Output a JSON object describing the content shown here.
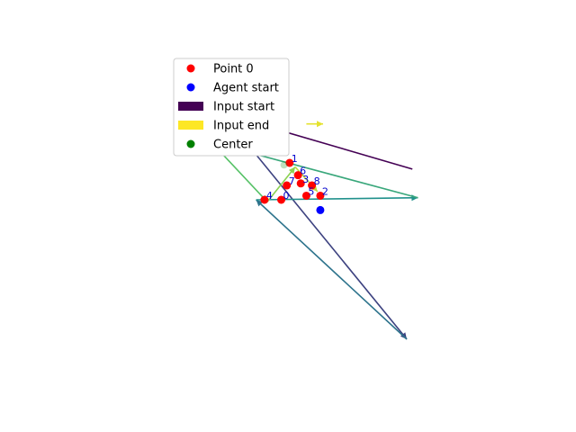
{
  "chart_data": {
    "type": "scatter",
    "title": "",
    "xlabel": "",
    "ylabel": "",
    "axes_visible": false,
    "grid": false,
    "xlim": [
      -4.0,
      4.0
    ],
    "ylim": [
      -4.5,
      3.6
    ],
    "colors": {
      "point": "#ff0000",
      "agent": "#0000ff",
      "center": "#008000",
      "label": "#0000cc",
      "input_start": "#440154",
      "input_end": "#fde725"
    },
    "points": [
      {
        "label": "0",
        "x": -0.25,
        "y": 0.0
      },
      {
        "label": "1",
        "x": -0.1,
        "y": 0.9
      },
      {
        "label": "2",
        "x": 0.45,
        "y": 0.1
      },
      {
        "label": "3",
        "x": 0.1,
        "y": 0.4
      },
      {
        "label": "4",
        "x": -0.55,
        "y": 0.0
      },
      {
        "label": "5",
        "x": 0.2,
        "y": 0.1
      },
      {
        "label": "6",
        "x": 0.05,
        "y": 0.6
      },
      {
        "label": "7",
        "x": -0.15,
        "y": 0.35
      },
      {
        "label": "8",
        "x": 0.3,
        "y": 0.35
      }
    ],
    "agent_start": [
      {
        "x": 0.45,
        "y": -0.25
      }
    ],
    "centers": [
      {
        "x": -0.2,
        "y": 0.85
      }
    ],
    "input_arrows": [
      {
        "x0": 2.1,
        "y0": 0.75,
        "x1": -1.3,
        "y1": 2.1,
        "t": 0.0
      },
      {
        "x0": -1.3,
        "y0": 2.1,
        "x1": 2.0,
        "y1": -3.4,
        "t": 0.2
      },
      {
        "x0": 2.0,
        "y0": -3.4,
        "x1": -0.7,
        "y1": 0.0,
        "t": 0.38
      },
      {
        "x0": -0.7,
        "y0": 0.0,
        "x1": 2.2,
        "y1": 0.05,
        "t": 0.5
      },
      {
        "x0": 2.2,
        "y0": 0.05,
        "x1": -1.5,
        "y1": 1.4,
        "t": 0.6
      },
      {
        "x0": -1.5,
        "y0": 1.4,
        "x1": -0.5,
        "y1": -0.05,
        "t": 0.72
      },
      {
        "x0": -0.5,
        "y0": -0.05,
        "x1": 0.0,
        "y1": 0.8,
        "t": 0.82
      },
      {
        "x0": 0.0,
        "y0": 0.8,
        "x1": 0.4,
        "y1": 0.2,
        "t": 0.9
      },
      {
        "x0": 0.2,
        "y0": 1.85,
        "x1": 0.5,
        "y1": 1.85,
        "t": 0.96
      }
    ],
    "legend": {
      "position": "upper-left",
      "entries": [
        {
          "label": "Point 0",
          "marker": "dot",
          "color": "#ff0000"
        },
        {
          "label": "Agent start",
          "marker": "dot",
          "color": "#0000ff"
        },
        {
          "label": "Input start",
          "marker": "rect",
          "color": "#440154"
        },
        {
          "label": "Input end",
          "marker": "rect",
          "color": "#fde725"
        },
        {
          "label": "Center",
          "marker": "dot",
          "color": "#008000"
        }
      ]
    }
  }
}
